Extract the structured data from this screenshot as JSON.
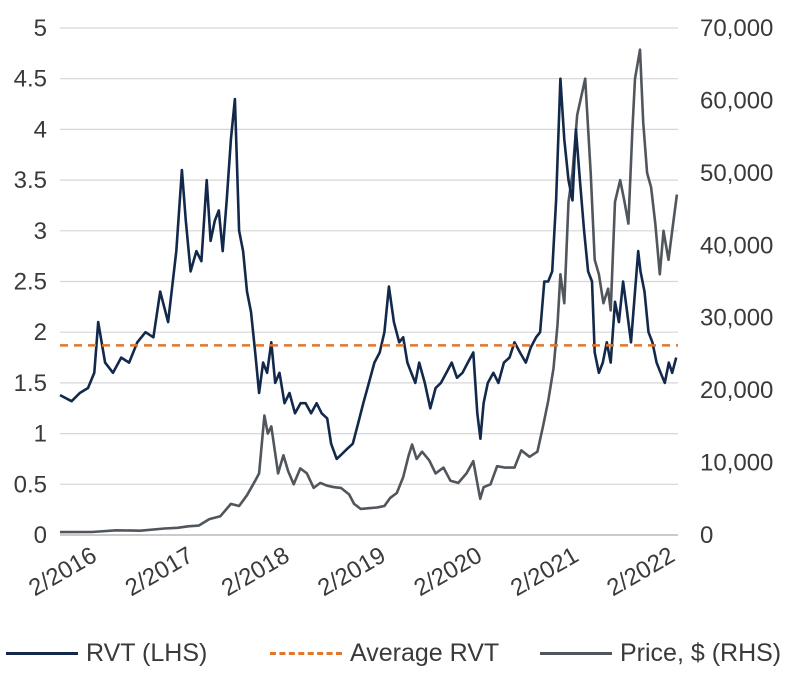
{
  "chart_data": {
    "type": "line",
    "title": "",
    "xlabel": "",
    "ylabel_left": "",
    "ylabel_right": "",
    "x_ticks": [
      "2/2016",
      "2/2017",
      "2/2018",
      "2/2019",
      "2/2020",
      "2/2021",
      "2/2022"
    ],
    "y_left_ticks": [
      "0",
      "0.5",
      "1",
      "1.5",
      "2",
      "2.5",
      "3",
      "3.5",
      "4",
      "4.5",
      "5"
    ],
    "y_right_ticks": [
      "0",
      "10,000",
      "20,000",
      "30,000",
      "40,000",
      "50,000",
      "60,000",
      "70,000"
    ],
    "ylim_left": [
      0,
      5
    ],
    "ylim_right": [
      0,
      70000
    ],
    "xlim": [
      "2015-11-01",
      "2022-04-01"
    ],
    "grid": "horizontal",
    "legend_position": "bottom",
    "colors": {
      "rvt": "#13294b",
      "average": "#e2762b",
      "price": "#50565c"
    },
    "series": [
      {
        "name": "RVT (LHS)",
        "axis": "left",
        "x": [
          "2015-11-01",
          "2015-12-15",
          "2016-01-15",
          "2016-02-15",
          "2016-03-10",
          "2016-03-25",
          "2016-04-20",
          "2016-05-20",
          "2016-06-20",
          "2016-07-20",
          "2016-08-20",
          "2016-09-20",
          "2016-10-20",
          "2016-11-15",
          "2016-12-15",
          "2017-01-15",
          "2017-02-05",
          "2017-02-20",
          "2017-03-10",
          "2017-04-01",
          "2017-04-20",
          "2017-05-10",
          "2017-05-25",
          "2017-06-10",
          "2017-06-25",
          "2017-07-10",
          "2017-07-25",
          "2017-08-10",
          "2017-08-25",
          "2017-09-10",
          "2017-09-25",
          "2017-10-10",
          "2017-10-25",
          "2017-11-10",
          "2017-11-25",
          "2017-12-10",
          "2017-12-25",
          "2018-01-10",
          "2018-01-25",
          "2018-02-10",
          "2018-03-01",
          "2018-03-20",
          "2018-04-10",
          "2018-05-01",
          "2018-05-20",
          "2018-06-10",
          "2018-07-01",
          "2018-07-20",
          "2018-08-10",
          "2018-08-25",
          "2018-09-15",
          "2018-10-05",
          "2018-10-25",
          "2018-11-15",
          "2018-12-05",
          "2018-12-25",
          "2019-01-15",
          "2019-02-05",
          "2019-02-25",
          "2019-03-15",
          "2019-04-01",
          "2019-04-20",
          "2019-05-10",
          "2019-05-25",
          "2019-06-10",
          "2019-06-25",
          "2019-07-10",
          "2019-07-25",
          "2019-08-15",
          "2019-09-05",
          "2019-09-25",
          "2019-10-15",
          "2019-11-05",
          "2019-11-25",
          "2019-12-15",
          "2020-01-05",
          "2020-01-25",
          "2020-02-15",
          "2020-03-01",
          "2020-03-13",
          "2020-03-25",
          "2020-04-10",
          "2020-05-01",
          "2020-05-20",
          "2020-06-10",
          "2020-07-01",
          "2020-07-20",
          "2020-08-10",
          "2020-09-01",
          "2020-09-20",
          "2020-10-10",
          "2020-10-25",
          "2020-11-10",
          "2020-11-25",
          "2020-12-10",
          "2020-12-25",
          "2021-01-10",
          "2021-01-25",
          "2021-02-10",
          "2021-02-25",
          "2021-03-10",
          "2021-03-25",
          "2021-04-10",
          "2021-04-25",
          "2021-05-10",
          "2021-05-20",
          "2021-06-05",
          "2021-06-20",
          "2021-07-05",
          "2021-07-20",
          "2021-08-05",
          "2021-08-20",
          "2021-09-05",
          "2021-09-20",
          "2021-10-05",
          "2021-10-20",
          "2021-11-01",
          "2021-11-10",
          "2021-11-25",
          "2021-12-10",
          "2021-12-25",
          "2022-01-10",
          "2022-01-25",
          "2022-02-10",
          "2022-02-25",
          "2022-03-10",
          "2022-03-25"
        ],
        "values": [
          1.38,
          1.32,
          1.4,
          1.45,
          1.6,
          2.1,
          1.7,
          1.6,
          1.75,
          1.7,
          1.9,
          2.0,
          1.95,
          2.4,
          2.1,
          2.8,
          3.6,
          3.1,
          2.6,
          2.8,
          2.7,
          3.5,
          2.9,
          3.1,
          3.2,
          2.8,
          3.3,
          3.9,
          4.3,
          3.0,
          2.8,
          2.4,
          2.2,
          1.8,
          1.4,
          1.7,
          1.6,
          1.9,
          1.5,
          1.6,
          1.3,
          1.4,
          1.2,
          1.3,
          1.3,
          1.2,
          1.3,
          1.2,
          1.15,
          0.9,
          0.75,
          0.8,
          0.85,
          0.9,
          1.1,
          1.3,
          1.5,
          1.7,
          1.8,
          2.0,
          2.45,
          2.1,
          1.9,
          1.95,
          1.7,
          1.6,
          1.5,
          1.7,
          1.5,
          1.25,
          1.45,
          1.5,
          1.6,
          1.7,
          1.55,
          1.6,
          1.7,
          1.8,
          1.2,
          0.95,
          1.3,
          1.5,
          1.6,
          1.5,
          1.7,
          1.75,
          1.9,
          1.8,
          1.7,
          1.85,
          1.95,
          2.0,
          2.5,
          2.5,
          2.6,
          3.3,
          4.5,
          3.9,
          3.5,
          3.3,
          4.0,
          3.5,
          3.0,
          2.6,
          2.5,
          1.8,
          1.6,
          1.7,
          1.9,
          1.7,
          2.3,
          2.1,
          2.5,
          2.2,
          1.9,
          2.4,
          2.8,
          2.6,
          2.4,
          2.0,
          1.9,
          1.7,
          1.6,
          1.5,
          1.7,
          1.6,
          1.75
        ]
      },
      {
        "name": "Average RVT",
        "axis": "left",
        "style": "dashed",
        "x": [
          "2015-11-01",
          "2022-04-01"
        ],
        "values": [
          1.87,
          1.87
        ]
      },
      {
        "name": "Price, $ (RHS)",
        "axis": "right",
        "x": [
          "2015-11-01",
          "2016-03-01",
          "2016-06-01",
          "2016-09-01",
          "2016-12-01",
          "2017-01-20",
          "2017-03-01",
          "2017-04-10",
          "2017-05-20",
          "2017-07-01",
          "2017-08-10",
          "2017-09-10",
          "2017-10-10",
          "2017-11-10",
          "2017-11-25",
          "2017-12-15",
          "2017-12-28",
          "2018-01-10",
          "2018-02-05",
          "2018-02-25",
          "2018-03-15",
          "2018-04-05",
          "2018-04-30",
          "2018-05-25",
          "2018-06-20",
          "2018-07-15",
          "2018-08-10",
          "2018-09-05",
          "2018-10-01",
          "2018-11-01",
          "2018-11-20",
          "2018-12-15",
          "2019-01-15",
          "2019-02-15",
          "2019-03-15",
          "2019-04-05",
          "2019-05-01",
          "2019-05-25",
          "2019-06-15",
          "2019-06-28",
          "2019-07-15",
          "2019-08-05",
          "2019-09-01",
          "2019-09-25",
          "2019-10-25",
          "2019-11-20",
          "2019-12-20",
          "2020-01-20",
          "2020-02-15",
          "2020-03-12",
          "2020-03-25",
          "2020-04-20",
          "2020-05-15",
          "2020-06-15",
          "2020-07-20",
          "2020-08-15",
          "2020-09-15",
          "2020-10-15",
          "2020-11-05",
          "2020-11-25",
          "2020-12-15",
          "2020-12-30",
          "2021-01-10",
          "2021-01-25",
          "2021-02-10",
          "2021-02-25",
          "2021-03-15",
          "2021-04-14",
          "2021-05-05",
          "2021-05-20",
          "2021-06-05",
          "2021-06-22",
          "2021-07-10",
          "2021-07-20",
          "2021-08-05",
          "2021-08-25",
          "2021-09-10",
          "2021-09-25",
          "2021-10-10",
          "2021-10-20",
          "2021-11-08",
          "2021-11-20",
          "2021-12-05",
          "2021-12-20",
          "2022-01-05",
          "2022-01-22",
          "2022-02-05",
          "2022-02-24",
          "2022-03-10",
          "2022-03-28"
        ],
        "values": [
          400,
          420,
          650,
          600,
          900,
          1000,
          1200,
          1300,
          2200,
          2600,
          4300,
          4000,
          5500,
          7500,
          8500,
          16500,
          14000,
          15000,
          8500,
          11000,
          8800,
          7000,
          9200,
          8500,
          6500,
          7200,
          6800,
          6600,
          6500,
          5600,
          4300,
          3600,
          3700,
          3800,
          4000,
          5100,
          5800,
          8000,
          11000,
          12500,
          10500,
          11500,
          10300,
          8500,
          9300,
          7500,
          7200,
          8500,
          10200,
          5000,
          6600,
          7000,
          9500,
          9300,
          9300,
          11700,
          10800,
          11500,
          15000,
          18500,
          23000,
          29000,
          36000,
          32000,
          46000,
          50000,
          58000,
          63000,
          50000,
          38000,
          36000,
          32000,
          34000,
          31000,
          46000,
          49000,
          46000,
          43000,
          56000,
          63000,
          67000,
          57000,
          50000,
          48000,
          43000,
          36000,
          42000,
          38000,
          42000,
          47000
        ]
      }
    ]
  },
  "legend": [
    {
      "label": "RVT (LHS)",
      "color": "#13294b",
      "style": "solid"
    },
    {
      "label": "Average RVT",
      "color": "#e2762b",
      "style": "dashed"
    },
    {
      "label": "Price, $ (RHS)",
      "color": "#50565c",
      "style": "solid"
    }
  ]
}
